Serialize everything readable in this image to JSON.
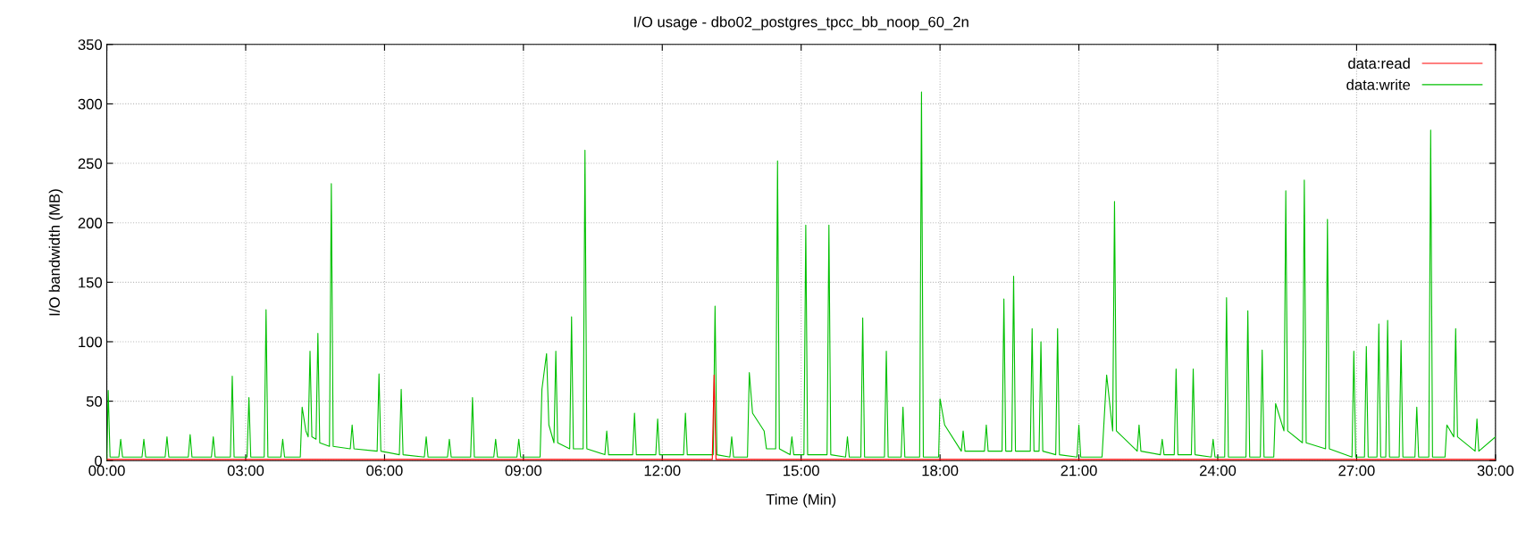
{
  "chart_data": {
    "type": "line",
    "title": "I/O usage - dbo02_postgres_tpcc_bb_noop_60_2n",
    "xlabel": "Time (Min)",
    "ylabel": "I/O bandwidth (MB)",
    "xlim": [
      0,
      30
    ],
    "ylim": [
      0,
      350
    ],
    "xticks": [
      {
        "value": 0,
        "label": "00:00"
      },
      {
        "value": 3,
        "label": "03:00"
      },
      {
        "value": 6,
        "label": "06:00"
      },
      {
        "value": 9,
        "label": "09:00"
      },
      {
        "value": 12,
        "label": "12:00"
      },
      {
        "value": 15,
        "label": "15:00"
      },
      {
        "value": 18,
        "label": "18:00"
      },
      {
        "value": 21,
        "label": "21:00"
      },
      {
        "value": 24,
        "label": "24:00"
      },
      {
        "value": 27,
        "label": "27:00"
      },
      {
        "value": 30,
        "label": "30:00"
      }
    ],
    "yticks": [
      0,
      50,
      100,
      150,
      200,
      250,
      300,
      350
    ],
    "grid": true,
    "legend": "top right",
    "line_style": "solid",
    "marker": "none",
    "series": [
      {
        "name": "data:read",
        "color": "#ff0000",
        "x": [
          0,
          13.08,
          13.12,
          13.16,
          30
        ],
        "values": [
          1,
          1,
          72,
          1,
          1
        ]
      },
      {
        "name": "data:write",
        "color": "#00c000",
        "x": [
          0,
          0.03,
          0.07,
          0.26,
          0.3,
          0.34,
          0.76,
          0.8,
          0.84,
          1.26,
          1.3,
          1.34,
          1.76,
          1.8,
          1.84,
          2.26,
          2.3,
          2.34,
          2.67,
          2.71,
          2.75,
          3.03,
          3.07,
          3.11,
          3.4,
          3.44,
          3.48,
          3.76,
          3.8,
          3.84,
          4.18,
          4.22,
          4.3,
          4.35,
          4.39,
          4.43,
          4.52,
          4.56,
          4.6,
          4.81,
          4.85,
          4.89,
          5.26,
          5.3,
          5.34,
          5.84,
          5.88,
          5.92,
          6.32,
          6.36,
          6.4,
          6.86,
          6.9,
          6.94,
          7.36,
          7.4,
          7.44,
          7.86,
          7.9,
          7.94,
          8.36,
          8.4,
          8.44,
          8.86,
          8.9,
          8.94,
          9.36,
          9.4,
          9.5,
          9.55,
          9.66,
          9.7,
          9.74,
          10.0,
          10.04,
          10.08,
          10.29,
          10.33,
          10.37,
          10.76,
          10.8,
          10.84,
          11.36,
          11.4,
          11.44,
          11.86,
          11.9,
          11.94,
          12.46,
          12.5,
          12.54,
          13.1,
          13.14,
          13.18,
          13.46,
          13.5,
          13.54,
          13.84,
          13.88,
          13.95,
          14.2,
          14.25,
          14.45,
          14.49,
          14.53,
          14.76,
          14.8,
          14.84,
          15.06,
          15.1,
          15.14,
          15.56,
          15.6,
          15.64,
          15.96,
          16.0,
          16.04,
          16.29,
          16.33,
          16.37,
          16.8,
          16.84,
          16.88,
          17.16,
          17.2,
          17.24,
          17.56,
          17.6,
          17.64,
          17.97,
          18.0,
          18.1,
          18.46,
          18.5,
          18.54,
          18.96,
          19.0,
          19.04,
          19.34,
          19.38,
          19.42,
          19.55,
          19.59,
          19.63,
          19.95,
          19.99,
          20.03,
          20.14,
          20.18,
          20.22,
          20.5,
          20.54,
          20.58,
          20.96,
          21.0,
          21.04,
          21.5,
          21.6,
          21.73,
          21.77,
          21.81,
          22.26,
          22.3,
          22.34,
          22.76,
          22.8,
          22.84,
          23.06,
          23.1,
          23.14,
          23.43,
          23.47,
          23.51,
          23.86,
          23.9,
          23.94,
          24.15,
          24.19,
          24.23,
          24.61,
          24.65,
          24.69,
          24.92,
          24.96,
          25.0,
          25.21,
          25.25,
          25.43,
          25.47,
          25.51,
          25.83,
          25.87,
          25.91,
          26.33,
          26.37,
          26.41,
          26.9,
          26.94,
          26.98,
          27.17,
          27.21,
          27.25,
          27.44,
          27.48,
          27.52,
          27.63,
          27.67,
          27.71,
          27.92,
          27.96,
          28.0,
          28.26,
          28.3,
          28.34,
          28.56,
          28.6,
          28.64,
          28.91,
          28.95,
          29.1,
          29.14,
          29.18,
          29.56,
          29.6,
          29.64,
          30
        ],
        "values": [
          0,
          59,
          3,
          3,
          18,
          3,
          3,
          18,
          3,
          3,
          20,
          3,
          3,
          22,
          3,
          3,
          20,
          3,
          3,
          71,
          3,
          3,
          53,
          3,
          3,
          127,
          3,
          3,
          18,
          3,
          3,
          45,
          25,
          20,
          92,
          20,
          18,
          107,
          15,
          12,
          233,
          12,
          10,
          30,
          10,
          8,
          73,
          8,
          5,
          60,
          5,
          3,
          20,
          3,
          3,
          18,
          3,
          3,
          53,
          3,
          3,
          18,
          3,
          3,
          18,
          3,
          3,
          60,
          90,
          30,
          15,
          92,
          15,
          10,
          121,
          10,
          10,
          261,
          10,
          5,
          25,
          5,
          5,
          40,
          5,
          5,
          35,
          5,
          5,
          40,
          5,
          5,
          130,
          5,
          3,
          20,
          3,
          3,
          74,
          40,
          25,
          10,
          10,
          252,
          10,
          5,
          20,
          5,
          5,
          198,
          5,
          5,
          198,
          5,
          3,
          20,
          3,
          3,
          120,
          3,
          3,
          92,
          3,
          3,
          45,
          3,
          3,
          310,
          3,
          3,
          52,
          30,
          8,
          25,
          8,
          8,
          30,
          8,
          8,
          136,
          8,
          8,
          155,
          8,
          8,
          111,
          8,
          8,
          100,
          8,
          5,
          111,
          5,
          3,
          30,
          3,
          3,
          72,
          25,
          218,
          25,
          8,
          30,
          8,
          5,
          18,
          5,
          5,
          77,
          5,
          5,
          77,
          5,
          3,
          18,
          3,
          3,
          137,
          3,
          3,
          126,
          3,
          3,
          93,
          3,
          3,
          48,
          25,
          227,
          25,
          15,
          236,
          15,
          10,
          203,
          10,
          3,
          92,
          3,
          3,
          96,
          3,
          3,
          115,
          3,
          3,
          118,
          3,
          3,
          101,
          3,
          3,
          45,
          3,
          3,
          278,
          3,
          3,
          30,
          20,
          111,
          20,
          8,
          35,
          8,
          20
        ]
      }
    ]
  }
}
